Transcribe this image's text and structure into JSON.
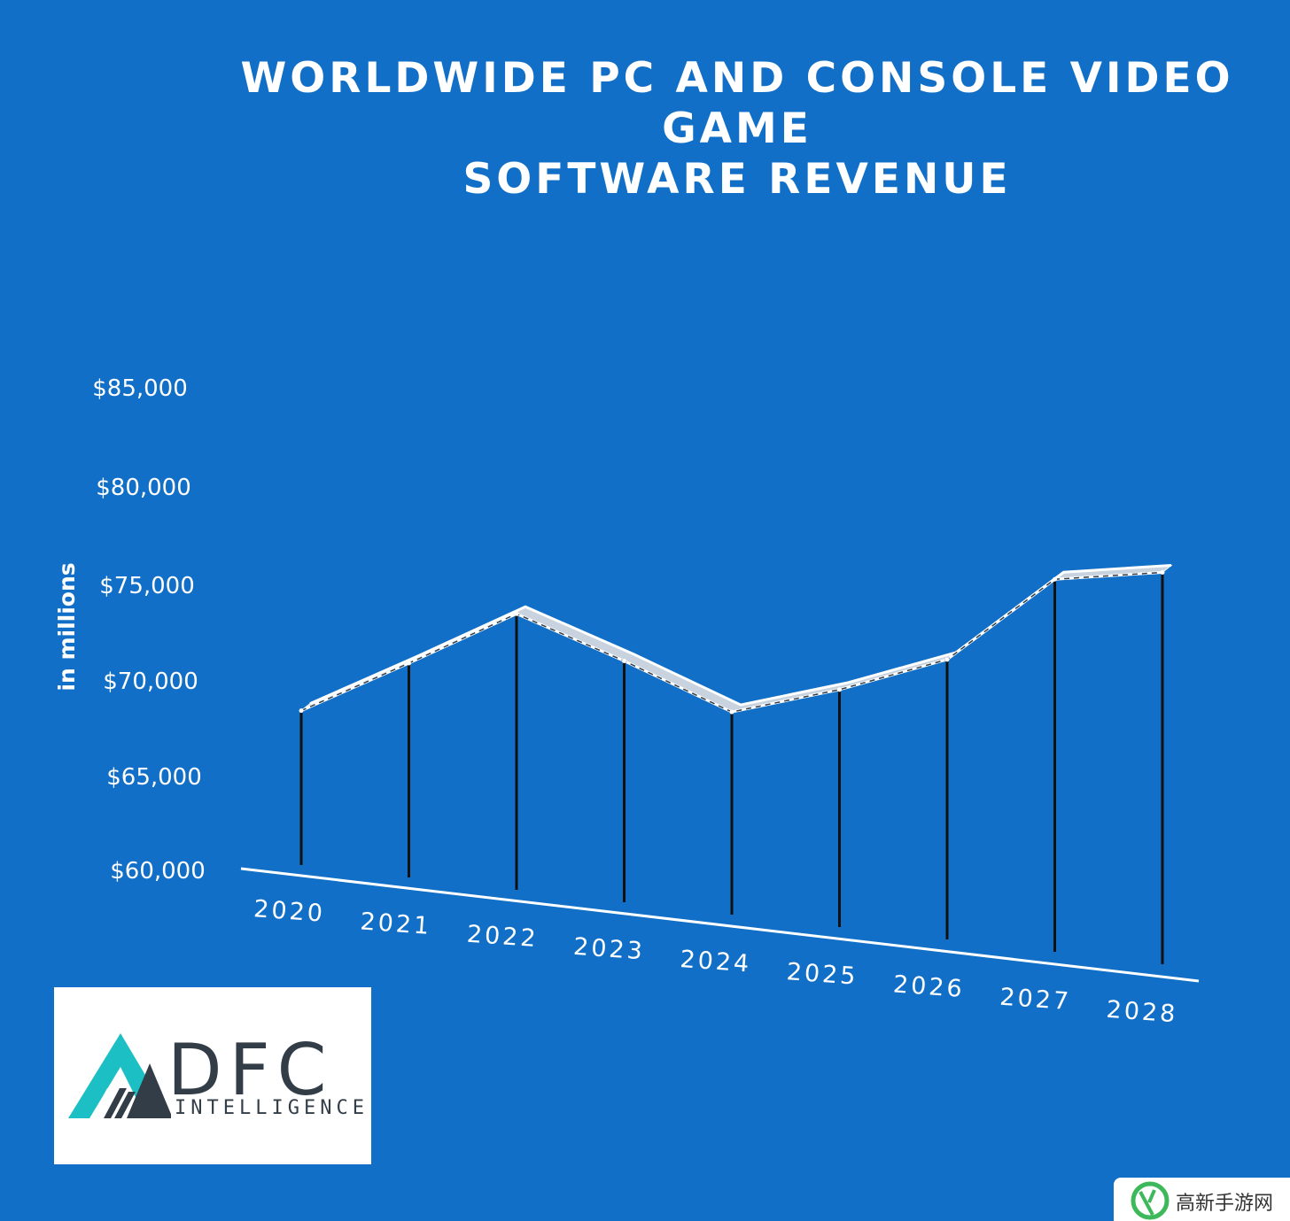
{
  "chart_data": {
    "type": "line",
    "title_lines": [
      "WORLDWIDE PC AND CONSOLE VIDEO",
      "GAME",
      "SOFTWARE REVENUE"
    ],
    "ylabel": "in millions",
    "categories": [
      "2020",
      "2021",
      "2022",
      "2023",
      "2024",
      "2025",
      "2026",
      "2027",
      "2028"
    ],
    "values": [
      68000,
      71100,
      74300,
      72500,
      70500,
      72300,
      74500,
      79300,
      80300
    ],
    "yticks": [
      "$60,000",
      "$65,000",
      "$70,000",
      "$75,000",
      "$80,000",
      "$85,000"
    ],
    "ylim": [
      60000,
      85000
    ],
    "grid": false,
    "legend": "none",
    "colors": {
      "background": "#116fc7",
      "line": "#ffffff",
      "stems": "#111111",
      "text": "#ffffff"
    }
  },
  "logo": {
    "brand": "DFC",
    "tagline": "INTELLIGENCE",
    "accent": "#1bbfc4",
    "dark": "#333d47"
  },
  "watermark": {
    "text": "高新手游网",
    "accent": "#3db85a"
  }
}
